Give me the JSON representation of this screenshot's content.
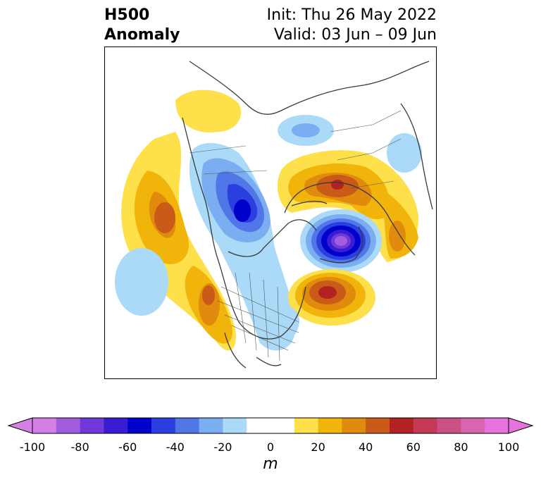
{
  "header": {
    "left_line1": "H500",
    "left_line2": "Anomaly",
    "init": "Init: Thu 26 May 2022",
    "valid": "Valid: 03 Jun – 09 Jun"
  },
  "colorbar": {
    "unit": "m",
    "ticks": [
      "-100",
      "-80",
      "-60",
      "-40",
      "-20",
      "0",
      "20",
      "40",
      "60",
      "80",
      "100"
    ],
    "colors": [
      "#d67fe6",
      "#a25ddf",
      "#6f3ad9",
      "#3a1cd3",
      "#0000cc",
      "#2b3fe0",
      "#5176e8",
      "#7aaef0",
      "#aadaf8",
      "#ffffff",
      "#ffffff",
      "#fde04a",
      "#f0b40b",
      "#e08a0e",
      "#c95a18",
      "#b22222",
      "#c23a55",
      "#cc5084",
      "#d765b0",
      "#e572dd"
    ],
    "min_color": "#d67fe6",
    "max_color": "#e572dd"
  }
}
